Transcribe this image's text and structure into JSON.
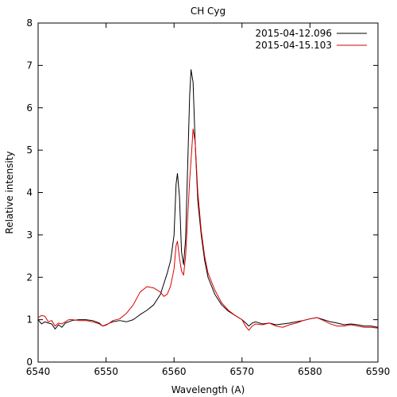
{
  "chart_data": {
    "type": "line",
    "title": "CH Cyg",
    "xlabel": "Wavelength (A)",
    "ylabel": "Relative intensity",
    "xlim": [
      6540,
      6590
    ],
    "ylim": [
      0,
      8
    ],
    "x_ticks": [
      6540,
      6550,
      6560,
      6570,
      6580,
      6590
    ],
    "y_ticks": [
      0,
      1,
      2,
      3,
      4,
      5,
      6,
      7,
      8
    ],
    "grid": false,
    "legend_position": "top-right",
    "series": [
      {
        "name": "2015-04-12.096",
        "color": "#000000",
        "points": [
          [
            6540.0,
            1.0
          ],
          [
            6540.5,
            0.9
          ],
          [
            6541.0,
            0.95
          ],
          [
            6541.5,
            0.92
          ],
          [
            6542.0,
            0.9
          ],
          [
            6542.5,
            0.78
          ],
          [
            6543.0,
            0.88
          ],
          [
            6543.5,
            0.82
          ],
          [
            6544.0,
            0.92
          ],
          [
            6544.5,
            0.95
          ],
          [
            6545.0,
            0.98
          ],
          [
            6546.0,
            1.0
          ],
          [
            6547.0,
            1.0
          ],
          [
            6548.0,
            0.98
          ],
          [
            6549.0,
            0.92
          ],
          [
            6549.5,
            0.85
          ],
          [
            6550.0,
            0.88
          ],
          [
            6550.5,
            0.92
          ],
          [
            6551.0,
            0.95
          ],
          [
            6552.0,
            0.98
          ],
          [
            6553.0,
            0.95
          ],
          [
            6554.0,
            1.0
          ],
          [
            6555.0,
            1.12
          ],
          [
            6556.0,
            1.22
          ],
          [
            6557.0,
            1.35
          ],
          [
            6558.0,
            1.6
          ],
          [
            6558.5,
            1.85
          ],
          [
            6559.0,
            2.1
          ],
          [
            6559.5,
            2.4
          ],
          [
            6560.0,
            3.0
          ],
          [
            6560.3,
            4.2
          ],
          [
            6560.5,
            4.45
          ],
          [
            6560.8,
            3.9
          ],
          [
            6561.1,
            2.6
          ],
          [
            6561.4,
            2.3
          ],
          [
            6561.7,
            2.9
          ],
          [
            6562.0,
            4.6
          ],
          [
            6562.3,
            6.3
          ],
          [
            6562.5,
            6.9
          ],
          [
            6562.8,
            6.6
          ],
          [
            6563.1,
            5.2
          ],
          [
            6563.5,
            3.8
          ],
          [
            6564.0,
            3.0
          ],
          [
            6564.5,
            2.4
          ],
          [
            6565.0,
            2.0
          ],
          [
            6566.0,
            1.6
          ],
          [
            6567.0,
            1.35
          ],
          [
            6568.0,
            1.2
          ],
          [
            6569.0,
            1.1
          ],
          [
            6570.0,
            1.0
          ],
          [
            6570.5,
            0.93
          ],
          [
            6571.0,
            0.85
          ],
          [
            6571.5,
            0.92
          ],
          [
            6572.0,
            0.95
          ],
          [
            6573.0,
            0.9
          ],
          [
            6574.0,
            0.92
          ],
          [
            6575.0,
            0.88
          ],
          [
            6576.0,
            0.9
          ],
          [
            6577.0,
            0.92
          ],
          [
            6578.0,
            0.95
          ],
          [
            6579.0,
            0.98
          ],
          [
            6580.0,
            1.02
          ],
          [
            6581.0,
            1.05
          ],
          [
            6582.0,
            1.0
          ],
          [
            6583.0,
            0.95
          ],
          [
            6584.0,
            0.92
          ],
          [
            6585.0,
            0.88
          ],
          [
            6586.0,
            0.9
          ],
          [
            6587.0,
            0.88
          ],
          [
            6588.0,
            0.85
          ],
          [
            6589.0,
            0.85
          ],
          [
            6590.0,
            0.82
          ]
        ]
      },
      {
        "name": "2015-04-15.103",
        "color": "#dd0000",
        "points": [
          [
            6540.0,
            1.05
          ],
          [
            6540.5,
            1.1
          ],
          [
            6541.0,
            1.08
          ],
          [
            6541.5,
            0.95
          ],
          [
            6542.0,
            0.98
          ],
          [
            6542.5,
            0.85
          ],
          [
            6543.0,
            0.92
          ],
          [
            6543.5,
            0.9
          ],
          [
            6544.0,
            0.95
          ],
          [
            6544.5,
            1.0
          ],
          [
            6545.0,
            1.0
          ],
          [
            6546.0,
            0.98
          ],
          [
            6547.0,
            0.98
          ],
          [
            6548.0,
            0.95
          ],
          [
            6549.0,
            0.9
          ],
          [
            6549.5,
            0.85
          ],
          [
            6550.0,
            0.87
          ],
          [
            6550.5,
            0.92
          ],
          [
            6551.0,
            0.98
          ],
          [
            6552.0,
            1.02
          ],
          [
            6553.0,
            1.15
          ],
          [
            6554.0,
            1.35
          ],
          [
            6555.0,
            1.65
          ],
          [
            6556.0,
            1.78
          ],
          [
            6557.0,
            1.75
          ],
          [
            6558.0,
            1.65
          ],
          [
            6558.5,
            1.55
          ],
          [
            6559.0,
            1.6
          ],
          [
            6559.5,
            1.8
          ],
          [
            6560.0,
            2.2
          ],
          [
            6560.3,
            2.75
          ],
          [
            6560.5,
            2.85
          ],
          [
            6560.8,
            2.45
          ],
          [
            6561.1,
            2.15
          ],
          [
            6561.4,
            2.05
          ],
          [
            6561.7,
            2.5
          ],
          [
            6562.0,
            3.4
          ],
          [
            6562.3,
            4.3
          ],
          [
            6562.6,
            5.0
          ],
          [
            6562.8,
            5.5
          ],
          [
            6563.1,
            5.2
          ],
          [
            6563.5,
            4.0
          ],
          [
            6564.0,
            3.1
          ],
          [
            6564.5,
            2.5
          ],
          [
            6565.0,
            2.1
          ],
          [
            6566.0,
            1.7
          ],
          [
            6567.0,
            1.4
          ],
          [
            6568.0,
            1.22
          ],
          [
            6569.0,
            1.1
          ],
          [
            6570.0,
            1.0
          ],
          [
            6570.5,
            0.85
          ],
          [
            6571.0,
            0.75
          ],
          [
            6571.5,
            0.85
          ],
          [
            6572.0,
            0.9
          ],
          [
            6573.0,
            0.88
          ],
          [
            6574.0,
            0.92
          ],
          [
            6575.0,
            0.85
          ],
          [
            6576.0,
            0.82
          ],
          [
            6577.0,
            0.88
          ],
          [
            6578.0,
            0.92
          ],
          [
            6579.0,
            0.98
          ],
          [
            6580.0,
            1.02
          ],
          [
            6581.0,
            1.05
          ],
          [
            6582.0,
            0.98
          ],
          [
            6583.0,
            0.9
          ],
          [
            6584.0,
            0.85
          ],
          [
            6585.0,
            0.85
          ],
          [
            6586.0,
            0.88
          ],
          [
            6587.0,
            0.85
          ],
          [
            6588.0,
            0.82
          ],
          [
            6589.0,
            0.82
          ],
          [
            6590.0,
            0.8
          ]
        ]
      }
    ]
  }
}
